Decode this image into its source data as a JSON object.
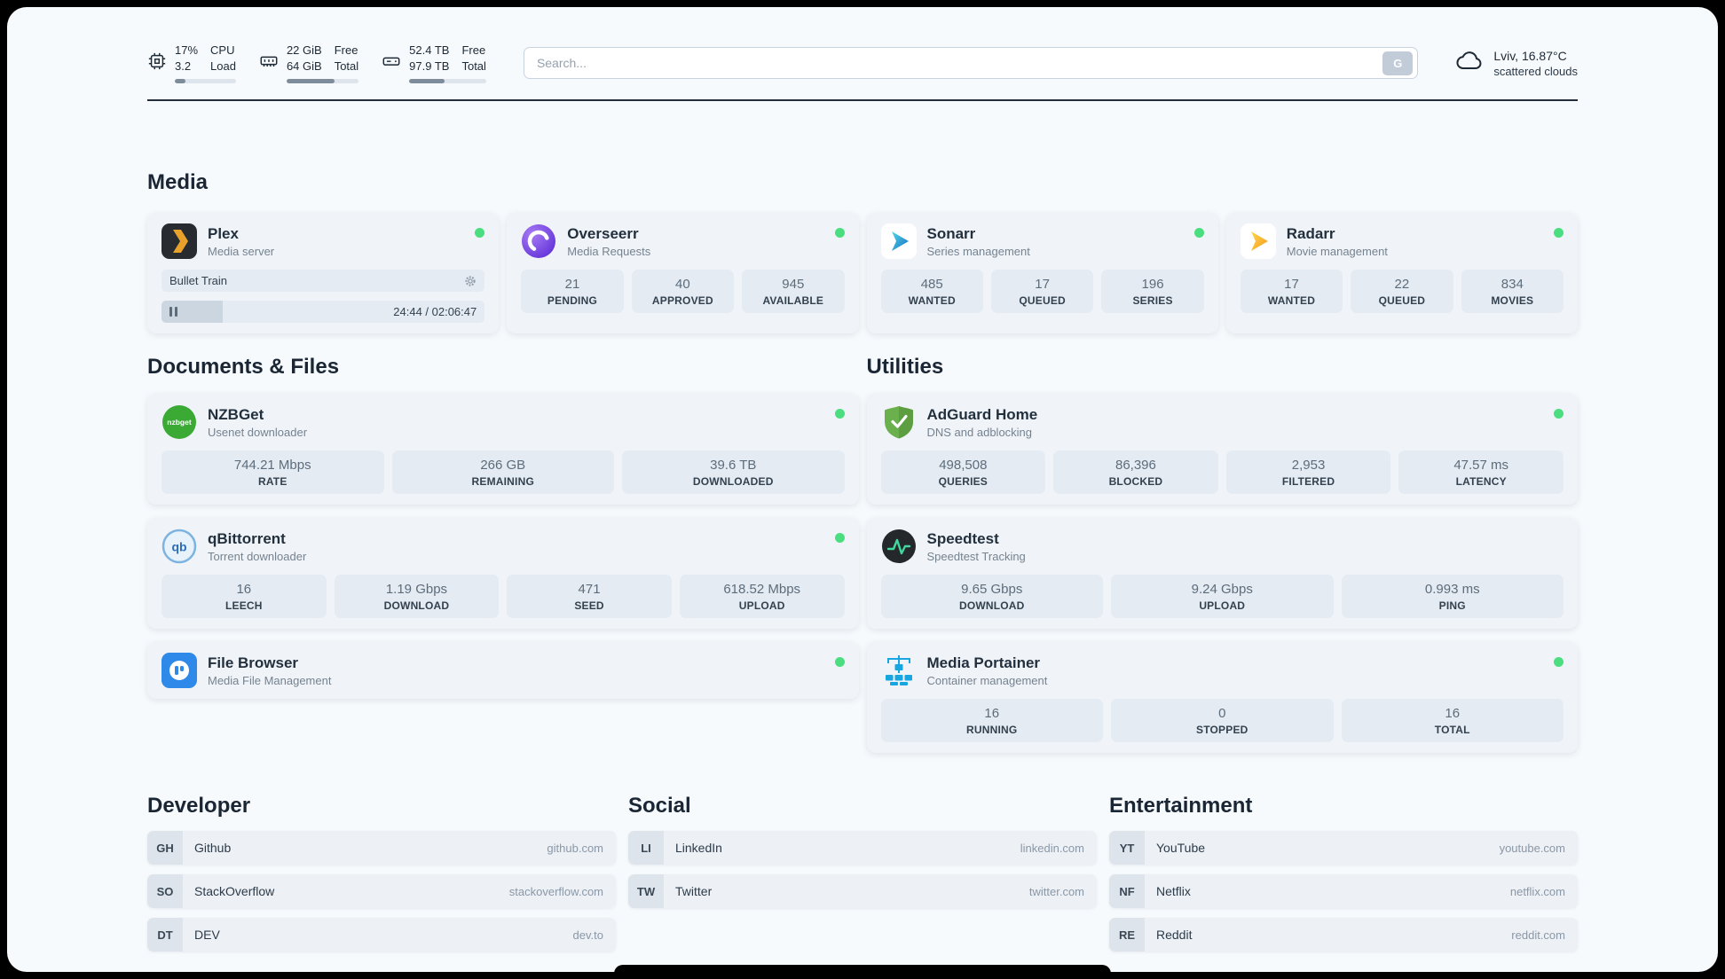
{
  "header": {
    "cpu": {
      "value": "17%",
      "load": "3.2",
      "label_top": "CPU",
      "label_bottom": "Load",
      "progress": 17
    },
    "ram": {
      "free": "22 GiB",
      "total": "64 GiB",
      "label_top": "Free",
      "label_bottom": "Total",
      "progress": 66
    },
    "disk": {
      "free": "52.4 TB",
      "total": "97.9 TB",
      "label_top": "Free",
      "label_bottom": "Total",
      "progress": 46
    },
    "search": {
      "placeholder": "Search...",
      "button_label": "G"
    },
    "weather": {
      "location": "Lviv, 16.87°C",
      "condition": "scattered clouds"
    }
  },
  "section_titles": {
    "media": "Media",
    "documents": "Documents & Files",
    "utilities": "Utilities",
    "developer": "Developer",
    "social": "Social",
    "entertainment": "Entertainment"
  },
  "apps": {
    "plex": {
      "name": "Plex",
      "subtitle": "Media server",
      "now_playing": "Bullet Train",
      "time": "24:44 / 02:06:47",
      "progress": 19
    },
    "overseerr": {
      "name": "Overseerr",
      "subtitle": "Media Requests",
      "stats": [
        {
          "value": "21",
          "label": "PENDING"
        },
        {
          "value": "40",
          "label": "APPROVED"
        },
        {
          "value": "945",
          "label": "AVAILABLE"
        }
      ]
    },
    "sonarr": {
      "name": "Sonarr",
      "subtitle": "Series management",
      "stats": [
        {
          "value": "485",
          "label": "WANTED"
        },
        {
          "value": "17",
          "label": "QUEUED"
        },
        {
          "value": "196",
          "label": "SERIES"
        }
      ]
    },
    "radarr": {
      "name": "Radarr",
      "subtitle": "Movie management",
      "stats": [
        {
          "value": "17",
          "label": "WANTED"
        },
        {
          "value": "22",
          "label": "QUEUED"
        },
        {
          "value": "834",
          "label": "MOVIES"
        }
      ]
    },
    "nzbget": {
      "name": "NZBGet",
      "subtitle": "Usenet downloader",
      "stats": [
        {
          "value": "744.21 Mbps",
          "label": "RATE"
        },
        {
          "value": "266 GB",
          "label": "REMAINING"
        },
        {
          "value": "39.6 TB",
          "label": "DOWNLOADED"
        }
      ]
    },
    "qbittorrent": {
      "name": "qBittorrent",
      "subtitle": "Torrent downloader",
      "stats": [
        {
          "value": "16",
          "label": "LEECH"
        },
        {
          "value": "1.19 Gbps",
          "label": "DOWNLOAD"
        },
        {
          "value": "471",
          "label": "SEED"
        },
        {
          "value": "618.52 Mbps",
          "label": "UPLOAD"
        }
      ]
    },
    "filebrowser": {
      "name": "File Browser",
      "subtitle": "Media File Management"
    },
    "adguard": {
      "name": "AdGuard Home",
      "subtitle": "DNS and adblocking",
      "stats": [
        {
          "value": "498,508",
          "label": "QUERIES"
        },
        {
          "value": "86,396",
          "label": "BLOCKED"
        },
        {
          "value": "2,953",
          "label": "FILTERED"
        },
        {
          "value": "47.57 ms",
          "label": "LATENCY"
        }
      ]
    },
    "speedtest": {
      "name": "Speedtest",
      "subtitle": "Speedtest Tracking",
      "stats": [
        {
          "value": "9.65 Gbps",
          "label": "DOWNLOAD"
        },
        {
          "value": "9.24 Gbps",
          "label": "UPLOAD"
        },
        {
          "value": "0.993 ms",
          "label": "PING"
        }
      ]
    },
    "portainer": {
      "name": "Media Portainer",
      "subtitle": "Container management",
      "stats": [
        {
          "value": "16",
          "label": "RUNNING"
        },
        {
          "value": "0",
          "label": "STOPPED"
        },
        {
          "value": "16",
          "label": "TOTAL"
        }
      ]
    }
  },
  "bookmarks": {
    "developer": [
      {
        "abbr": "GH",
        "name": "Github",
        "url": "github.com"
      },
      {
        "abbr": "SO",
        "name": "StackOverflow",
        "url": "stackoverflow.com"
      },
      {
        "abbr": "DT",
        "name": "DEV",
        "url": "dev.to"
      }
    ],
    "social": [
      {
        "abbr": "LI",
        "name": "LinkedIn",
        "url": "linkedin.com"
      },
      {
        "abbr": "TW",
        "name": "Twitter",
        "url": "twitter.com"
      }
    ],
    "entertainment": [
      {
        "abbr": "YT",
        "name": "YouTube",
        "url": "youtube.com"
      },
      {
        "abbr": "NF",
        "name": "Netflix",
        "url": "netflix.com"
      },
      {
        "abbr": "RE",
        "name": "Reddit",
        "url": "reddit.com"
      }
    ]
  },
  "colors": {
    "status_online": "#4ade80",
    "plex_gold": "#e8a22c",
    "sonarr_blue": "#35a7d6",
    "radarr_orange": "#f59b23",
    "adguard_green": "#6ab04c",
    "speedtest_green": "#3fd99f",
    "portainer_blue": "#18a6e0",
    "filebrowser_blue": "#2f89e8",
    "nzbget_green": "#3aaa35",
    "overseerr_purple": "#6a3de8"
  }
}
